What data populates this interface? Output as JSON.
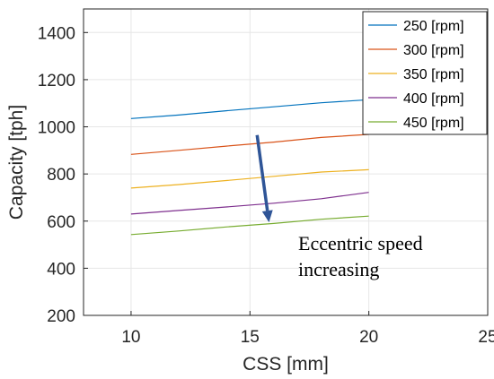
{
  "chart_data": {
    "type": "line",
    "xlabel": "CSS [mm]",
    "ylabel": "Capacity [tph]",
    "xlim": [
      8,
      25
    ],
    "ylim": [
      200,
      1500
    ],
    "xticks": [
      10,
      15,
      20,
      25
    ],
    "yticks": [
      200,
      400,
      600,
      800,
      1000,
      1200,
      1400
    ],
    "grid": true,
    "legend_position": "top-right",
    "series": [
      {
        "name": "250 [rpm]",
        "color": "#0072BD",
        "x": [
          10,
          12,
          14,
          16,
          18,
          20
        ],
        "values": [
          1035,
          1050,
          1068,
          1085,
          1102,
          1115
        ]
      },
      {
        "name": "300 [rpm]",
        "color": "#D95319",
        "x": [
          10,
          12,
          14,
          16,
          18,
          20
        ],
        "values": [
          883,
          900,
          918,
          935,
          955,
          968
        ]
      },
      {
        "name": "350 [rpm]",
        "color": "#EDB120",
        "x": [
          10,
          12,
          14,
          16,
          18,
          20
        ],
        "values": [
          740,
          755,
          772,
          790,
          808,
          818
        ]
      },
      {
        "name": "400 [rpm]",
        "color": "#7E2F8E",
        "x": [
          10,
          12,
          14,
          16,
          18,
          20
        ],
        "values": [
          630,
          645,
          660,
          676,
          695,
          722
        ]
      },
      {
        "name": "450 [rpm]",
        "color": "#77AC30",
        "x": [
          10,
          12,
          14,
          16,
          18,
          20
        ],
        "values": [
          543,
          558,
          575,
          590,
          608,
          621
        ]
      }
    ],
    "annotation": {
      "lines": [
        "Eccentric speed",
        "increasing"
      ],
      "arrow_color": "#2F5597",
      "arrow_from": [
        15.3,
        965
      ],
      "arrow_to": [
        15.8,
        595
      ]
    }
  }
}
